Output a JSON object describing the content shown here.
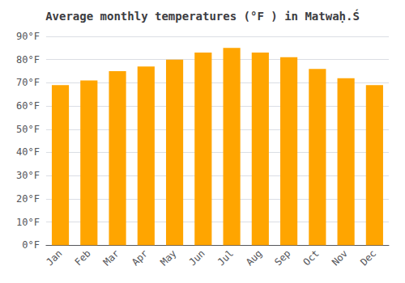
{
  "chart_data": {
    "type": "bar",
    "title": "Average monthly temperatures (°F ) in Matwaḥ.Ś",
    "categories": [
      "Jan",
      "Feb",
      "Mar",
      "Apr",
      "May",
      "Jun",
      "Jul",
      "Aug",
      "Sep",
      "Oct",
      "Nov",
      "Dec"
    ],
    "values": [
      69,
      71,
      75,
      77,
      80,
      83,
      85,
      83,
      81,
      76,
      72,
      69
    ],
    "color": "#FFA500",
    "ylim": [
      0,
      90
    ],
    "yticks": [
      {
        "value": 0,
        "label": "0°F"
      },
      {
        "value": 10,
        "label": "10°F"
      },
      {
        "value": 20,
        "label": "20°F"
      },
      {
        "value": 30,
        "label": "30°F"
      },
      {
        "value": 40,
        "label": "40°F"
      },
      {
        "value": 50,
        "label": "50°F"
      },
      {
        "value": 60,
        "label": "60°F"
      },
      {
        "value": 70,
        "label": "70°F"
      },
      {
        "value": 80,
        "label": "80°F"
      },
      {
        "value": 90,
        "label": "90°F"
      }
    ],
    "grid": true
  }
}
